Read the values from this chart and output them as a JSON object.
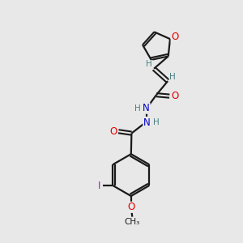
{
  "background_color": "#e8e8e8",
  "bond_color": "#1a1a1a",
  "atom_colors": {
    "O": "#e60000",
    "N": "#0000cc",
    "I": "#cc00cc",
    "C": "#1a1a1a",
    "H": "#4a8080"
  },
  "figsize": [
    3.0,
    3.0
  ],
  "dpi": 100
}
